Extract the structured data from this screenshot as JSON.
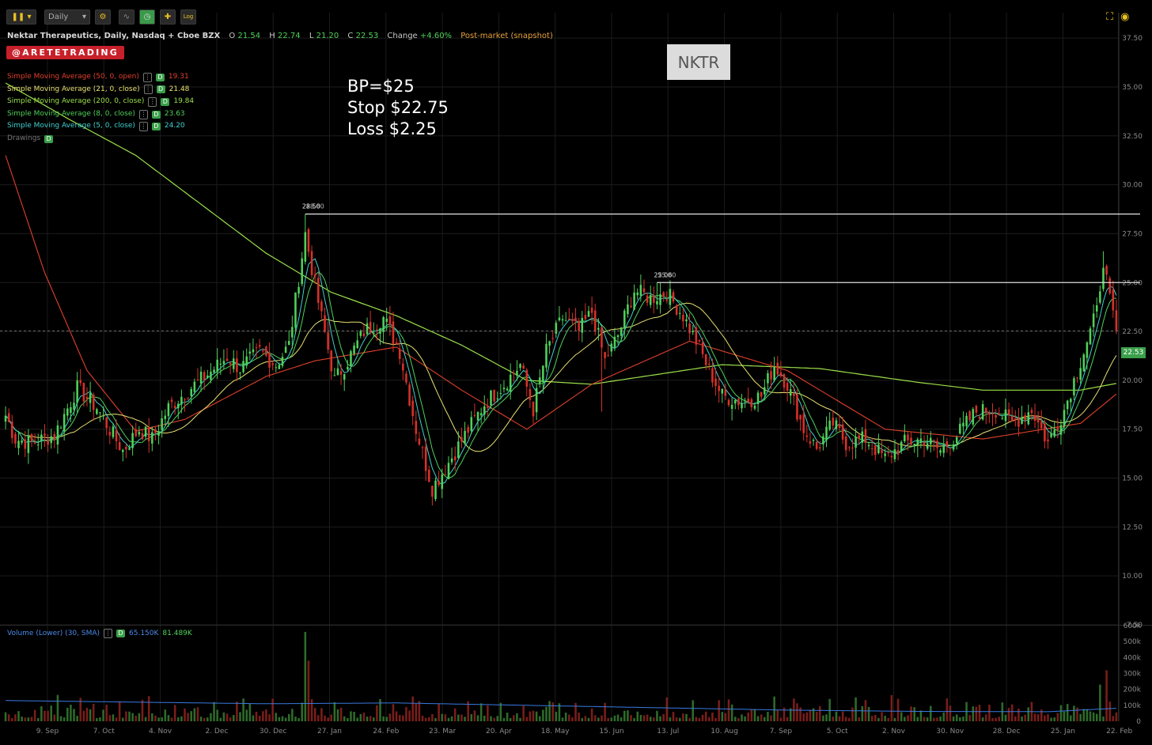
{
  "toolbar": {
    "interval_select": "Daily",
    "log_label": "Log"
  },
  "header": {
    "title": "Nektar Therapeutics, Daily, Nasdaq + Cboe BZX",
    "open_label": "O",
    "open": "21.54",
    "high_label": "H",
    "high": "22.74",
    "low_label": "L",
    "low": "21.20",
    "close_label": "C",
    "close": "22.53",
    "change_label": "Change",
    "change": "+4.60%",
    "post_market": "Post-market (snapshot)"
  },
  "logo_text": "@ARETETRADING",
  "studies": [
    {
      "label": "Simple Moving Average (50, 0, open)",
      "value": "19.31",
      "color": "#e0402c"
    },
    {
      "label": "Simple Moving Average (21, 0, close)",
      "value": "21.48",
      "color": "#e8e070"
    },
    {
      "label": "Simple Moving Average (200, 0, close)",
      "value": "19.84",
      "color": "#9be04a"
    },
    {
      "label": "Simple Moving Average (8, 0, close)",
      "value": "23.63",
      "color": "#4fd15a"
    },
    {
      "label": "Simple Moving Average (5, 0, close)",
      "value": "24.20",
      "color": "#40d0d0"
    }
  ],
  "drawings_label": "Drawings",
  "badge_letter": "D",
  "annotation": {
    "line1": "BP=$25",
    "line2": "Stop $22.75",
    "line3": "Loss $2.25"
  },
  "symbol_box": "NKTR",
  "volume_legend": {
    "label": "Volume (Lower) (30, SMA)",
    "value1": "65.150K",
    "value2": "81.489K"
  },
  "last_price_tag": "22.53",
  "colors": {
    "up": "#4fd15a",
    "down": "#d8312a",
    "sma50": "#e0402c",
    "sma21": "#e8e070",
    "sma200": "#9be04a",
    "sma8": "#4fd15a",
    "sma5": "#40d0d0",
    "vol_up": "#2e6b2a",
    "vol_down": "#7a1e1a",
    "vol_sma": "#3a7ae0"
  },
  "chart_data": {
    "type": "candlestick",
    "price_axis": {
      "ylim": [
        7.5,
        38.8
      ],
      "ticks": [
        "37.50",
        "35.00",
        "32.50",
        "30.00",
        "27.50",
        "25.00",
        "22.50",
        "20.00",
        "17.50",
        "15.00",
        "12.50",
        "10.00",
        "7.50"
      ]
    },
    "volume_axis": {
      "ylim": [
        0,
        600000
      ],
      "ticks": [
        "600k",
        "500k",
        "400k",
        "300k",
        "200k",
        "100k",
        "0"
      ]
    },
    "x_labels": [
      "9. Sep",
      "7. Oct",
      "4. Nov",
      "2. Dec",
      "30. Dec",
      "27. Jan",
      "24. Feb",
      "23. Mar",
      "20. Apr",
      "18. May",
      "15. Jun",
      "13. Jul",
      "10. Aug",
      "7. Sep",
      "5. Oct",
      "2. Nov",
      "30. Nov",
      "28. Dec",
      "25. Jan",
      "22. Feb"
    ],
    "horizontal_lines": [
      {
        "price": 28.5,
        "label": "28.50",
        "label2": "28.60"
      },
      {
        "price": 25.0,
        "label": "25.06",
        "label2": "25.00"
      }
    ],
    "close_anchors": [
      [
        0,
        18.2
      ],
      [
        3,
        17.0
      ],
      [
        8,
        16.8
      ],
      [
        15,
        17.2
      ],
      [
        22,
        19.6
      ],
      [
        28,
        18.6
      ],
      [
        33,
        17.2
      ],
      [
        36,
        16.4
      ],
      [
        41,
        17.5
      ],
      [
        45,
        17.0
      ],
      [
        50,
        18.6
      ],
      [
        56,
        19.5
      ],
      [
        62,
        20.3
      ],
      [
        68,
        21.2
      ],
      [
        72,
        20.6
      ],
      [
        78,
        21.5
      ],
      [
        83,
        20.8
      ],
      [
        87,
        21.8
      ],
      [
        92,
        27.5
      ],
      [
        96,
        24.0
      ],
      [
        101,
        20.0
      ],
      [
        105,
        21.0
      ],
      [
        110,
        22.5
      ],
      [
        116,
        23.2
      ],
      [
        121,
        21.5
      ],
      [
        126,
        17.5
      ],
      [
        131,
        14.5
      ],
      [
        136,
        15.8
      ],
      [
        141,
        17.2
      ],
      [
        147,
        18.8
      ],
      [
        153,
        19.8
      ],
      [
        158,
        20.8
      ],
      [
        162,
        18.5
      ],
      [
        166,
        21.5
      ],
      [
        171,
        23.2
      ],
      [
        176,
        22.5
      ],
      [
        180,
        23.5
      ],
      [
        184,
        21.0
      ],
      [
        188,
        22.3
      ],
      [
        193,
        24.6
      ],
      [
        198,
        24.2
      ],
      [
        203,
        24.5
      ],
      [
        208,
        23.3
      ],
      [
        212,
        22.0
      ],
      [
        216,
        20.5
      ],
      [
        220,
        19.2
      ],
      [
        226,
        18.9
      ],
      [
        232,
        19.2
      ],
      [
        236,
        20.8
      ],
      [
        240,
        19.8
      ],
      [
        245,
        17.5
      ],
      [
        249,
        16.5
      ],
      [
        254,
        17.8
      ],
      [
        258,
        16.8
      ],
      [
        264,
        17.0
      ],
      [
        270,
        16.0
      ],
      [
        276,
        16.8
      ],
      [
        282,
        17.0
      ],
      [
        287,
        16.4
      ],
      [
        292,
        17.2
      ],
      [
        298,
        18.4
      ],
      [
        304,
        18.5
      ],
      [
        309,
        17.8
      ],
      [
        315,
        18.5
      ],
      [
        320,
        16.8
      ],
      [
        325,
        18.5
      ],
      [
        330,
        21.0
      ],
      [
        335,
        23.5
      ],
      [
        337,
        26.2
      ],
      [
        339,
        24.0
      ],
      [
        341,
        22.53
      ]
    ],
    "sma_anchors": {
      "sma50": [
        [
          0,
          31.5
        ],
        [
          12,
          25.5
        ],
        [
          25,
          20.5
        ],
        [
          40,
          17.4
        ],
        [
          55,
          18.0
        ],
        [
          80,
          20.2
        ],
        [
          95,
          21.0
        ],
        [
          120,
          21.7
        ],
        [
          140,
          19.5
        ],
        [
          160,
          17.5
        ],
        [
          180,
          19.8
        ],
        [
          210,
          22.0
        ],
        [
          240,
          20.5
        ],
        [
          270,
          17.5
        ],
        [
          300,
          17.0
        ],
        [
          330,
          17.8
        ],
        [
          341,
          19.3
        ]
      ],
      "sma200": [
        [
          0,
          35.2
        ],
        [
          20,
          33.3
        ],
        [
          40,
          31.5
        ],
        [
          60,
          29.0
        ],
        [
          80,
          26.5
        ],
        [
          100,
          24.5
        ],
        [
          120,
          23.3
        ],
        [
          140,
          21.8
        ],
        [
          160,
          20.0
        ],
        [
          180,
          19.8
        ],
        [
          200,
          20.3
        ],
        [
          220,
          20.8
        ],
        [
          250,
          20.6
        ],
        [
          280,
          19.9
        ],
        [
          300,
          19.5
        ],
        [
          330,
          19.5
        ],
        [
          341,
          19.84
        ]
      ]
    },
    "volume_sma_anchors": [
      [
        0,
        130000
      ],
      [
        40,
        120000
      ],
      [
        80,
        110000
      ],
      [
        120,
        115000
      ],
      [
        160,
        100000
      ],
      [
        200,
        85000
      ],
      [
        240,
        70000
      ],
      [
        280,
        62000
      ],
      [
        320,
        60000
      ],
      [
        341,
        81489
      ]
    ],
    "volume_spikes": [
      [
        92,
        560000
      ],
      [
        93,
        380000
      ],
      [
        336,
        230000
      ],
      [
        338,
        320000
      ]
    ]
  }
}
